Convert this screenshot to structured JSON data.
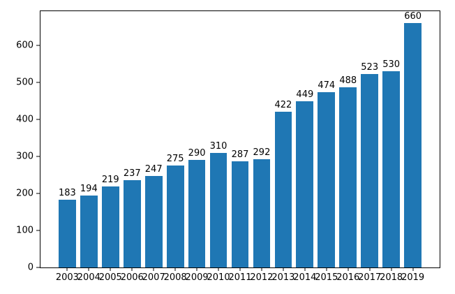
{
  "chart_data": {
    "type": "bar",
    "title": "",
    "xlabel": "",
    "ylabel": "",
    "categories": [
      "2003",
      "2004",
      "2005",
      "2006",
      "2007",
      "2008",
      "2009",
      "2010",
      "2011",
      "2012",
      "2013",
      "2014",
      "2015",
      "2016",
      "2017",
      "2018",
      "2019"
    ],
    "values": [
      183,
      194,
      219,
      237,
      247,
      275,
      290,
      310,
      287,
      292,
      422,
      449,
      474,
      488,
      523,
      530,
      660
    ],
    "value_labels_shown": true,
    "yticks": [
      0,
      100,
      200,
      300,
      400,
      500,
      600
    ],
    "ylim": [
      0,
      693
    ],
    "xlim": [
      -1.24,
      17.24
    ],
    "bar_width_ratio": 0.8,
    "bar_color": "#1f77b4",
    "axis_color": "#000000",
    "text_color": "#000000",
    "grid": "off",
    "legend": "none"
  }
}
